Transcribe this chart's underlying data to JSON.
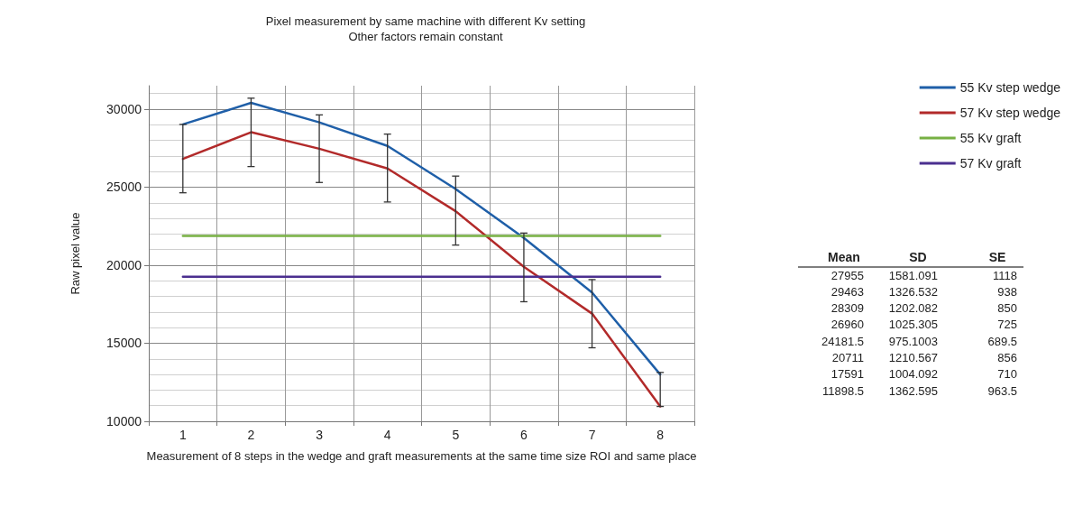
{
  "chart_data": {
    "type": "line",
    "title": "Pixel measurement by same machine with different Kv setting",
    "subtitle": "Other factors remain constant",
    "xlabel": "Measurement of 8 steps in the wedge and graft measurements at the same time size ROI and same place",
    "ylabel": "Raw pixel value",
    "categories": [
      "1",
      "2",
      "3",
      "4",
      "5",
      "6",
      "7",
      "8"
    ],
    "series": [
      {
        "name": "55 Kv step wedge",
        "color": "#1f5fa8",
        "values": [
          29020,
          30400,
          29150,
          27640,
          24880,
          21750,
          18250,
          13000
        ],
        "errors": [
          [
            24640,
            29020
          ],
          [
            26320,
            30700
          ],
          [
            25300,
            29630
          ],
          [
            24050,
            28400
          ],
          [
            21290,
            25710
          ],
          [
            17660,
            22060
          ],
          [
            14710,
            19080
          ],
          [
            10950,
            13130
          ]
        ]
      },
      {
        "name": "57 Kv step wedge",
        "color": "#b22a2a",
        "values": [
          26810,
          28520,
          27460,
          26200,
          23460,
          19900,
          16900,
          10950
        ]
      },
      {
        "name": "55 Kv graft",
        "color": "#77b043",
        "values": [
          21880,
          21880,
          21880,
          21880,
          21880,
          21880,
          21880,
          21880
        ]
      },
      {
        "name": "57 Kv graft",
        "color": "#4b2f8f",
        "values": [
          19260,
          19260,
          19260,
          19260,
          19260,
          19260,
          19260,
          19260
        ]
      }
    ],
    "ylim": [
      10000,
      31500
    ],
    "yticks": [
      10000,
      15000,
      20000,
      25000,
      30000
    ],
    "grid": true,
    "legend": "right",
    "marker": "none",
    "line_style": "solid",
    "annotations": [
      "Mean",
      "SD",
      "SE",
      "27955",
      "1581.091",
      "1118",
      "29463",
      "1326.532",
      "938",
      "28309",
      "1202.082",
      "850",
      "26960",
      "1025.305",
      "725",
      "24181.5",
      "975.1003",
      "689.5",
      "20711",
      "1210.567",
      "856",
      "17591",
      "1004.092",
      "710",
      "11898.5",
      "1362.595",
      "963.5"
    ]
  }
}
